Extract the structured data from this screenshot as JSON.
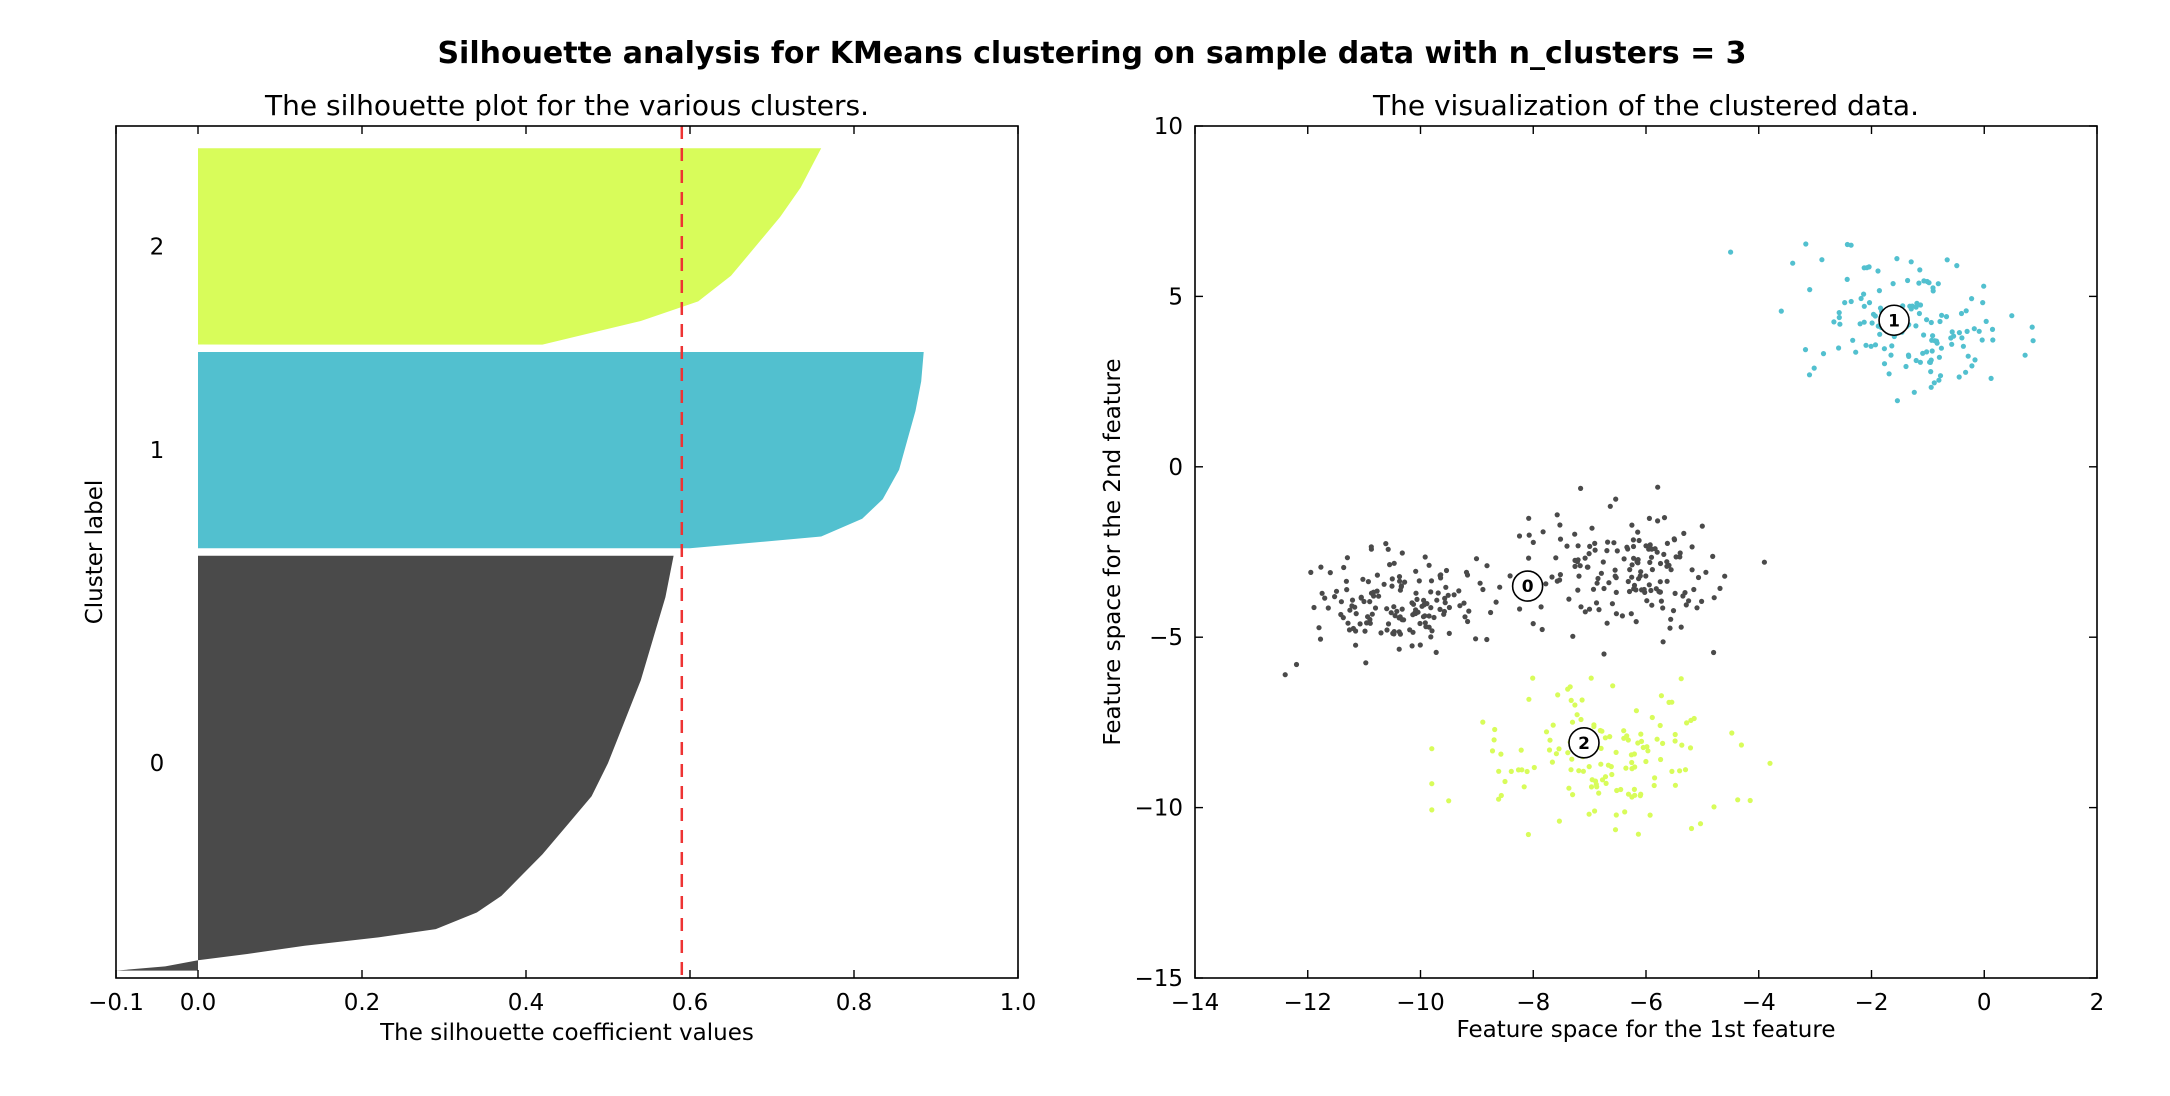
{
  "figure": {
    "title": "Silhouette analysis for KMeans clustering on sample data with n_clusters = 3"
  },
  "colors": {
    "cluster_0": "#4a4a4a",
    "cluster_1": "#52c0cf",
    "cluster_2": "#d8fc5a",
    "average_line": "#ee3333"
  },
  "chart_data": [
    {
      "type": "area",
      "title": "The silhouette plot for the various clusters.",
      "xlabel": "The silhouette coefficient values",
      "ylabel": "Cluster label",
      "xlim": [
        -0.1,
        1.0
      ],
      "ylim": [
        0,
        1150
      ],
      "xticks": [
        -0.1,
        0.0,
        0.2,
        0.4,
        0.6,
        0.8,
        1.0
      ],
      "xtick_labels": [
        "−0.1",
        "0.0",
        "0.2",
        "0.4",
        "0.6",
        "0.8",
        "1.0"
      ],
      "yticks": [],
      "grid": false,
      "silhouette_avg": 0.59,
      "clusters": [
        {
          "label": "0",
          "y_lower": 10,
          "y_upper": 570,
          "profile": [
            [
              0.0,
              -0.1
            ],
            [
              0.01,
              -0.04
            ],
            [
              0.025,
              0.0
            ],
            [
              0.04,
              0.06
            ],
            [
              0.06,
              0.13
            ],
            [
              0.08,
              0.22
            ],
            [
              0.1,
              0.29
            ],
            [
              0.14,
              0.34
            ],
            [
              0.18,
              0.37
            ],
            [
              0.22,
              0.39
            ],
            [
              0.28,
              0.42
            ],
            [
              0.35,
              0.45
            ],
            [
              0.42,
              0.48
            ],
            [
              0.5,
              0.5
            ],
            [
              0.6,
              0.52
            ],
            [
              0.7,
              0.54
            ],
            [
              0.8,
              0.555
            ],
            [
              0.9,
              0.57
            ],
            [
              1.0,
              0.58
            ]
          ]
        },
        {
          "label": "1",
          "y_lower": 580,
          "y_upper": 845,
          "profile": [
            [
              0.0,
              0.6
            ],
            [
              0.06,
              0.76
            ],
            [
              0.15,
              0.81
            ],
            [
              0.25,
              0.835
            ],
            [
              0.4,
              0.855
            ],
            [
              0.55,
              0.865
            ],
            [
              0.7,
              0.875
            ],
            [
              0.85,
              0.882
            ],
            [
              1.0,
              0.885
            ]
          ]
        },
        {
          "label": "2",
          "y_lower": 855,
          "y_upper": 1120,
          "profile": [
            [
              0.0,
              0.42
            ],
            [
              0.05,
              0.47
            ],
            [
              0.12,
              0.54
            ],
            [
              0.22,
              0.61
            ],
            [
              0.35,
              0.65
            ],
            [
              0.5,
              0.68
            ],
            [
              0.65,
              0.71
            ],
            [
              0.8,
              0.735
            ],
            [
              0.92,
              0.75
            ],
            [
              1.0,
              0.76
            ]
          ]
        }
      ]
    },
    {
      "type": "scatter",
      "title": "The visualization of the clustered data.",
      "xlabel": "Feature space for the 1st feature",
      "ylabel": "Feature space for the 2nd feature",
      "xlim": [
        -14,
        2
      ],
      "ylim": [
        -15,
        10
      ],
      "xticks": [
        -14,
        -12,
        -10,
        -8,
        -6,
        -4,
        -2,
        0,
        2
      ],
      "xtick_labels": [
        "−14",
        "−12",
        "−10",
        "−8",
        "−6",
        "−4",
        "−2",
        "0",
        "2"
      ],
      "yticks": [
        -15,
        -10,
        -5,
        0,
        5,
        10
      ],
      "ytick_labels": [
        "−15",
        "−10",
        "−5",
        "0",
        "5",
        "10"
      ],
      "grid": false,
      "clusters": [
        {
          "label": "0",
          "points_shown": 310,
          "spread": [
            [
              -12.6,
              -4.3
            ],
            [
              -6.2,
              -0.6
            ]
          ]
        },
        {
          "label": "1",
          "points_shown": 140,
          "spread": [
            [
              -3.6,
              0.9
            ],
            [
              1.9,
              6.9
            ]
          ]
        },
        {
          "label": "2",
          "points_shown": 140,
          "spread": [
            [
              -9.8,
              -3.7
            ],
            [
              -11.0,
              -6.2
            ]
          ]
        }
      ],
      "centers": [
        {
          "label": "0",
          "x": -8.1,
          "y": -3.5
        },
        {
          "label": "1",
          "x": -1.6,
          "y": 4.3
        },
        {
          "label": "2",
          "x": -7.1,
          "y": -8.1
        }
      ],
      "outliers": [
        {
          "cluster": "0",
          "x": -12.4,
          "y": -6.1
        },
        {
          "cluster": "0",
          "x": -3.9,
          "y": -2.8
        },
        {
          "cluster": "0",
          "x": -12.2,
          "y": -5.8
        },
        {
          "cluster": "1",
          "x": -4.5,
          "y": 6.3
        },
        {
          "cluster": "1",
          "x": 0.85,
          "y": 4.1
        },
        {
          "cluster": "1",
          "x": -3.1,
          "y": 2.7
        },
        {
          "cluster": "2",
          "x": -3.8,
          "y": -8.7
        },
        {
          "cluster": "2",
          "x": -9.5,
          "y": -9.8
        },
        {
          "cluster": "2",
          "x": -9.8,
          "y": -9.3
        }
      ]
    }
  ]
}
